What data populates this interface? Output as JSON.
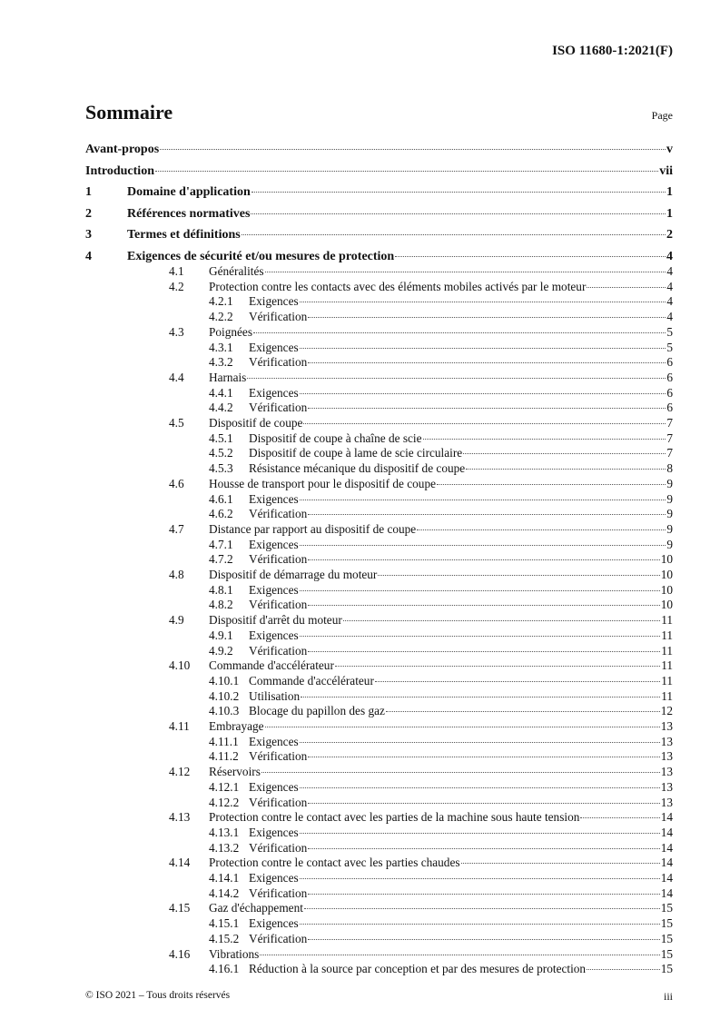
{
  "header": {
    "doc_id": "ISO 11680-1:2021(F)"
  },
  "toc": {
    "title": "Sommaire",
    "page_label": "Page",
    "entries": [
      {
        "level": 0,
        "num": "",
        "title": "Avant-propos",
        "page": "v"
      },
      {
        "level": 0,
        "num": "",
        "title": "Introduction",
        "page": "vii"
      },
      {
        "level": 1,
        "num": "1",
        "title": "Domaine d'application",
        "page": "1"
      },
      {
        "level": 1,
        "num": "2",
        "title": "Références normatives",
        "page": "1"
      },
      {
        "level": 1,
        "num": "3",
        "title": "Termes et définitions",
        "page": "2"
      },
      {
        "level": 1,
        "num": "4",
        "title": "Exigences de sécurité et/ou mesures de protection",
        "page": "4"
      },
      {
        "level": 2,
        "num": "4.1",
        "title": "Généralités",
        "page": "4"
      },
      {
        "level": 2,
        "num": "4.2",
        "title": "Protection contre les contacts avec des éléments mobiles activés par le moteur",
        "page": "4"
      },
      {
        "level": 3,
        "num": "4.2.1",
        "title": "Exigences",
        "page": "4"
      },
      {
        "level": 3,
        "num": "4.2.2",
        "title": "Vérification",
        "page": "4"
      },
      {
        "level": 2,
        "num": "4.3",
        "title": "Poignées",
        "page": "5"
      },
      {
        "level": 3,
        "num": "4.3.1",
        "title": "Exigences",
        "page": "5"
      },
      {
        "level": 3,
        "num": "4.3.2",
        "title": "Vérification",
        "page": "6"
      },
      {
        "level": 2,
        "num": "4.4",
        "title": "Harnais",
        "page": "6"
      },
      {
        "level": 3,
        "num": "4.4.1",
        "title": "Exigences",
        "page": "6"
      },
      {
        "level": 3,
        "num": "4.4.2",
        "title": "Vérification",
        "page": "6"
      },
      {
        "level": 2,
        "num": "4.5",
        "title": "Dispositif de coupe",
        "page": "7"
      },
      {
        "level": 3,
        "num": "4.5.1",
        "title": "Dispositif de coupe à chaîne de scie",
        "page": "7"
      },
      {
        "level": 3,
        "num": "4.5.2",
        "title": "Dispositif de coupe à lame de scie circulaire",
        "page": "7"
      },
      {
        "level": 3,
        "num": "4.5.3",
        "title": "Résistance mécanique du dispositif de coupe",
        "page": "8"
      },
      {
        "level": 2,
        "num": "4.6",
        "title": "Housse de transport pour le dispositif de coupe",
        "page": "9"
      },
      {
        "level": 3,
        "num": "4.6.1",
        "title": "Exigences",
        "page": "9"
      },
      {
        "level": 3,
        "num": "4.6.2",
        "title": "Vérification",
        "page": "9"
      },
      {
        "level": 2,
        "num": "4.7",
        "title": "Distance par rapport au dispositif de coupe",
        "page": "9"
      },
      {
        "level": 3,
        "num": "4.7.1",
        "title": "Exigences",
        "page": "9"
      },
      {
        "level": 3,
        "num": "4.7.2",
        "title": "Vérification",
        "page": "10"
      },
      {
        "level": 2,
        "num": "4.8",
        "title": "Dispositif de démarrage du moteur",
        "page": "10"
      },
      {
        "level": 3,
        "num": "4.8.1",
        "title": "Exigences",
        "page": "10"
      },
      {
        "level": 3,
        "num": "4.8.2",
        "title": "Vérification",
        "page": "10"
      },
      {
        "level": 2,
        "num": "4.9",
        "title": "Dispositif d'arrêt du moteur",
        "page": "11"
      },
      {
        "level": 3,
        "num": "4.9.1",
        "title": "Exigences",
        "page": "11"
      },
      {
        "level": 3,
        "num": "4.9.2",
        "title": "Vérification",
        "page": "11"
      },
      {
        "level": 2,
        "num": "4.10",
        "title": "Commande d'accélérateur",
        "page": "11"
      },
      {
        "level": 3,
        "num": "4.10.1",
        "title": "Commande d'accélérateur",
        "page": "11"
      },
      {
        "level": 3,
        "num": "4.10.2",
        "title": "Utilisation",
        "page": "11"
      },
      {
        "level": 3,
        "num": "4.10.3",
        "title": "Blocage du papillon des gaz",
        "page": "12"
      },
      {
        "level": 2,
        "num": "4.11",
        "title": "Embrayage",
        "page": "13"
      },
      {
        "level": 3,
        "num": "4.11.1",
        "title": "Exigences",
        "page": "13"
      },
      {
        "level": 3,
        "num": "4.11.2",
        "title": "Vérification",
        "page": "13"
      },
      {
        "level": 2,
        "num": "4.12",
        "title": "Réservoirs",
        "page": "13"
      },
      {
        "level": 3,
        "num": "4.12.1",
        "title": "Exigences",
        "page": "13"
      },
      {
        "level": 3,
        "num": "4.12.2",
        "title": "Vérification",
        "page": "13"
      },
      {
        "level": 2,
        "num": "4.13",
        "title": "Protection contre le contact avec les parties de la machine sous haute tension",
        "page": "14"
      },
      {
        "level": 3,
        "num": "4.13.1",
        "title": "Exigences",
        "page": "14"
      },
      {
        "level": 3,
        "num": "4.13.2",
        "title": "Vérification",
        "page": "14"
      },
      {
        "level": 2,
        "num": "4.14",
        "title": "Protection contre le contact avec les parties chaudes",
        "page": "14"
      },
      {
        "level": 3,
        "num": "4.14.1",
        "title": "Exigences",
        "page": "14"
      },
      {
        "level": 3,
        "num": "4.14.2",
        "title": "Vérification",
        "page": "14"
      },
      {
        "level": 2,
        "num": "4.15",
        "title": "Gaz d'échappement",
        "page": "15"
      },
      {
        "level": 3,
        "num": "4.15.1",
        "title": "Exigences",
        "page": "15"
      },
      {
        "level": 3,
        "num": "4.15.2",
        "title": "Vérification",
        "page": "15"
      },
      {
        "level": 2,
        "num": "4.16",
        "title": "Vibrations",
        "page": "15"
      },
      {
        "level": 3,
        "num": "4.16.1",
        "title": "Réduction à la source par conception et par des mesures de protection",
        "page": "15"
      }
    ]
  },
  "footer": {
    "copyright": "© ISO 2021 – Tous droits réservés",
    "page_number": "iii"
  }
}
